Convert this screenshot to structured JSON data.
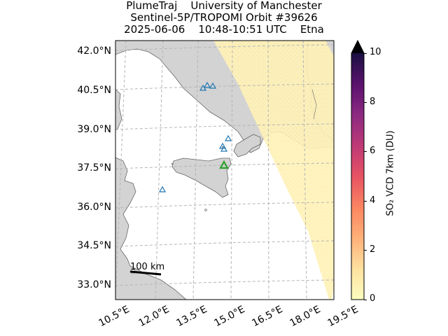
{
  "title": {
    "line1": "PlumeTraj    University of Manchester",
    "line2": "Sentinel-5P/TROPOMI Orbit #39626",
    "line3": "2025-06-06    10:48-10:51 UTC    Etna"
  },
  "map": {
    "lat_labels": [
      "42.0°N",
      "40.5°N",
      "39.0°N",
      "37.5°N",
      "36.0°N",
      "34.5°N",
      "33.0°N"
    ],
    "lon_labels": [
      "10.5°E",
      "12.0°E",
      "13.5°E",
      "15.0°E",
      "16.5°E",
      "18.0°E",
      "19.5°E"
    ],
    "scale_bar_label": "100 km",
    "land_color": "#d3d3d3",
    "sea_color": "#ffffff",
    "swath_color": "#fff3b8",
    "target_volcano": "Etna",
    "target_marker_color": "#2ca02c",
    "other_volcano_marker_color": "#1f77b4"
  },
  "colorbar": {
    "label": "SO₂ VCD 7km (DU)",
    "ticks": [
      "0",
      "2",
      "4",
      "6",
      "8",
      "10"
    ],
    "min": 0,
    "max": 10,
    "colormap": "magma_r",
    "extend": "max"
  }
}
